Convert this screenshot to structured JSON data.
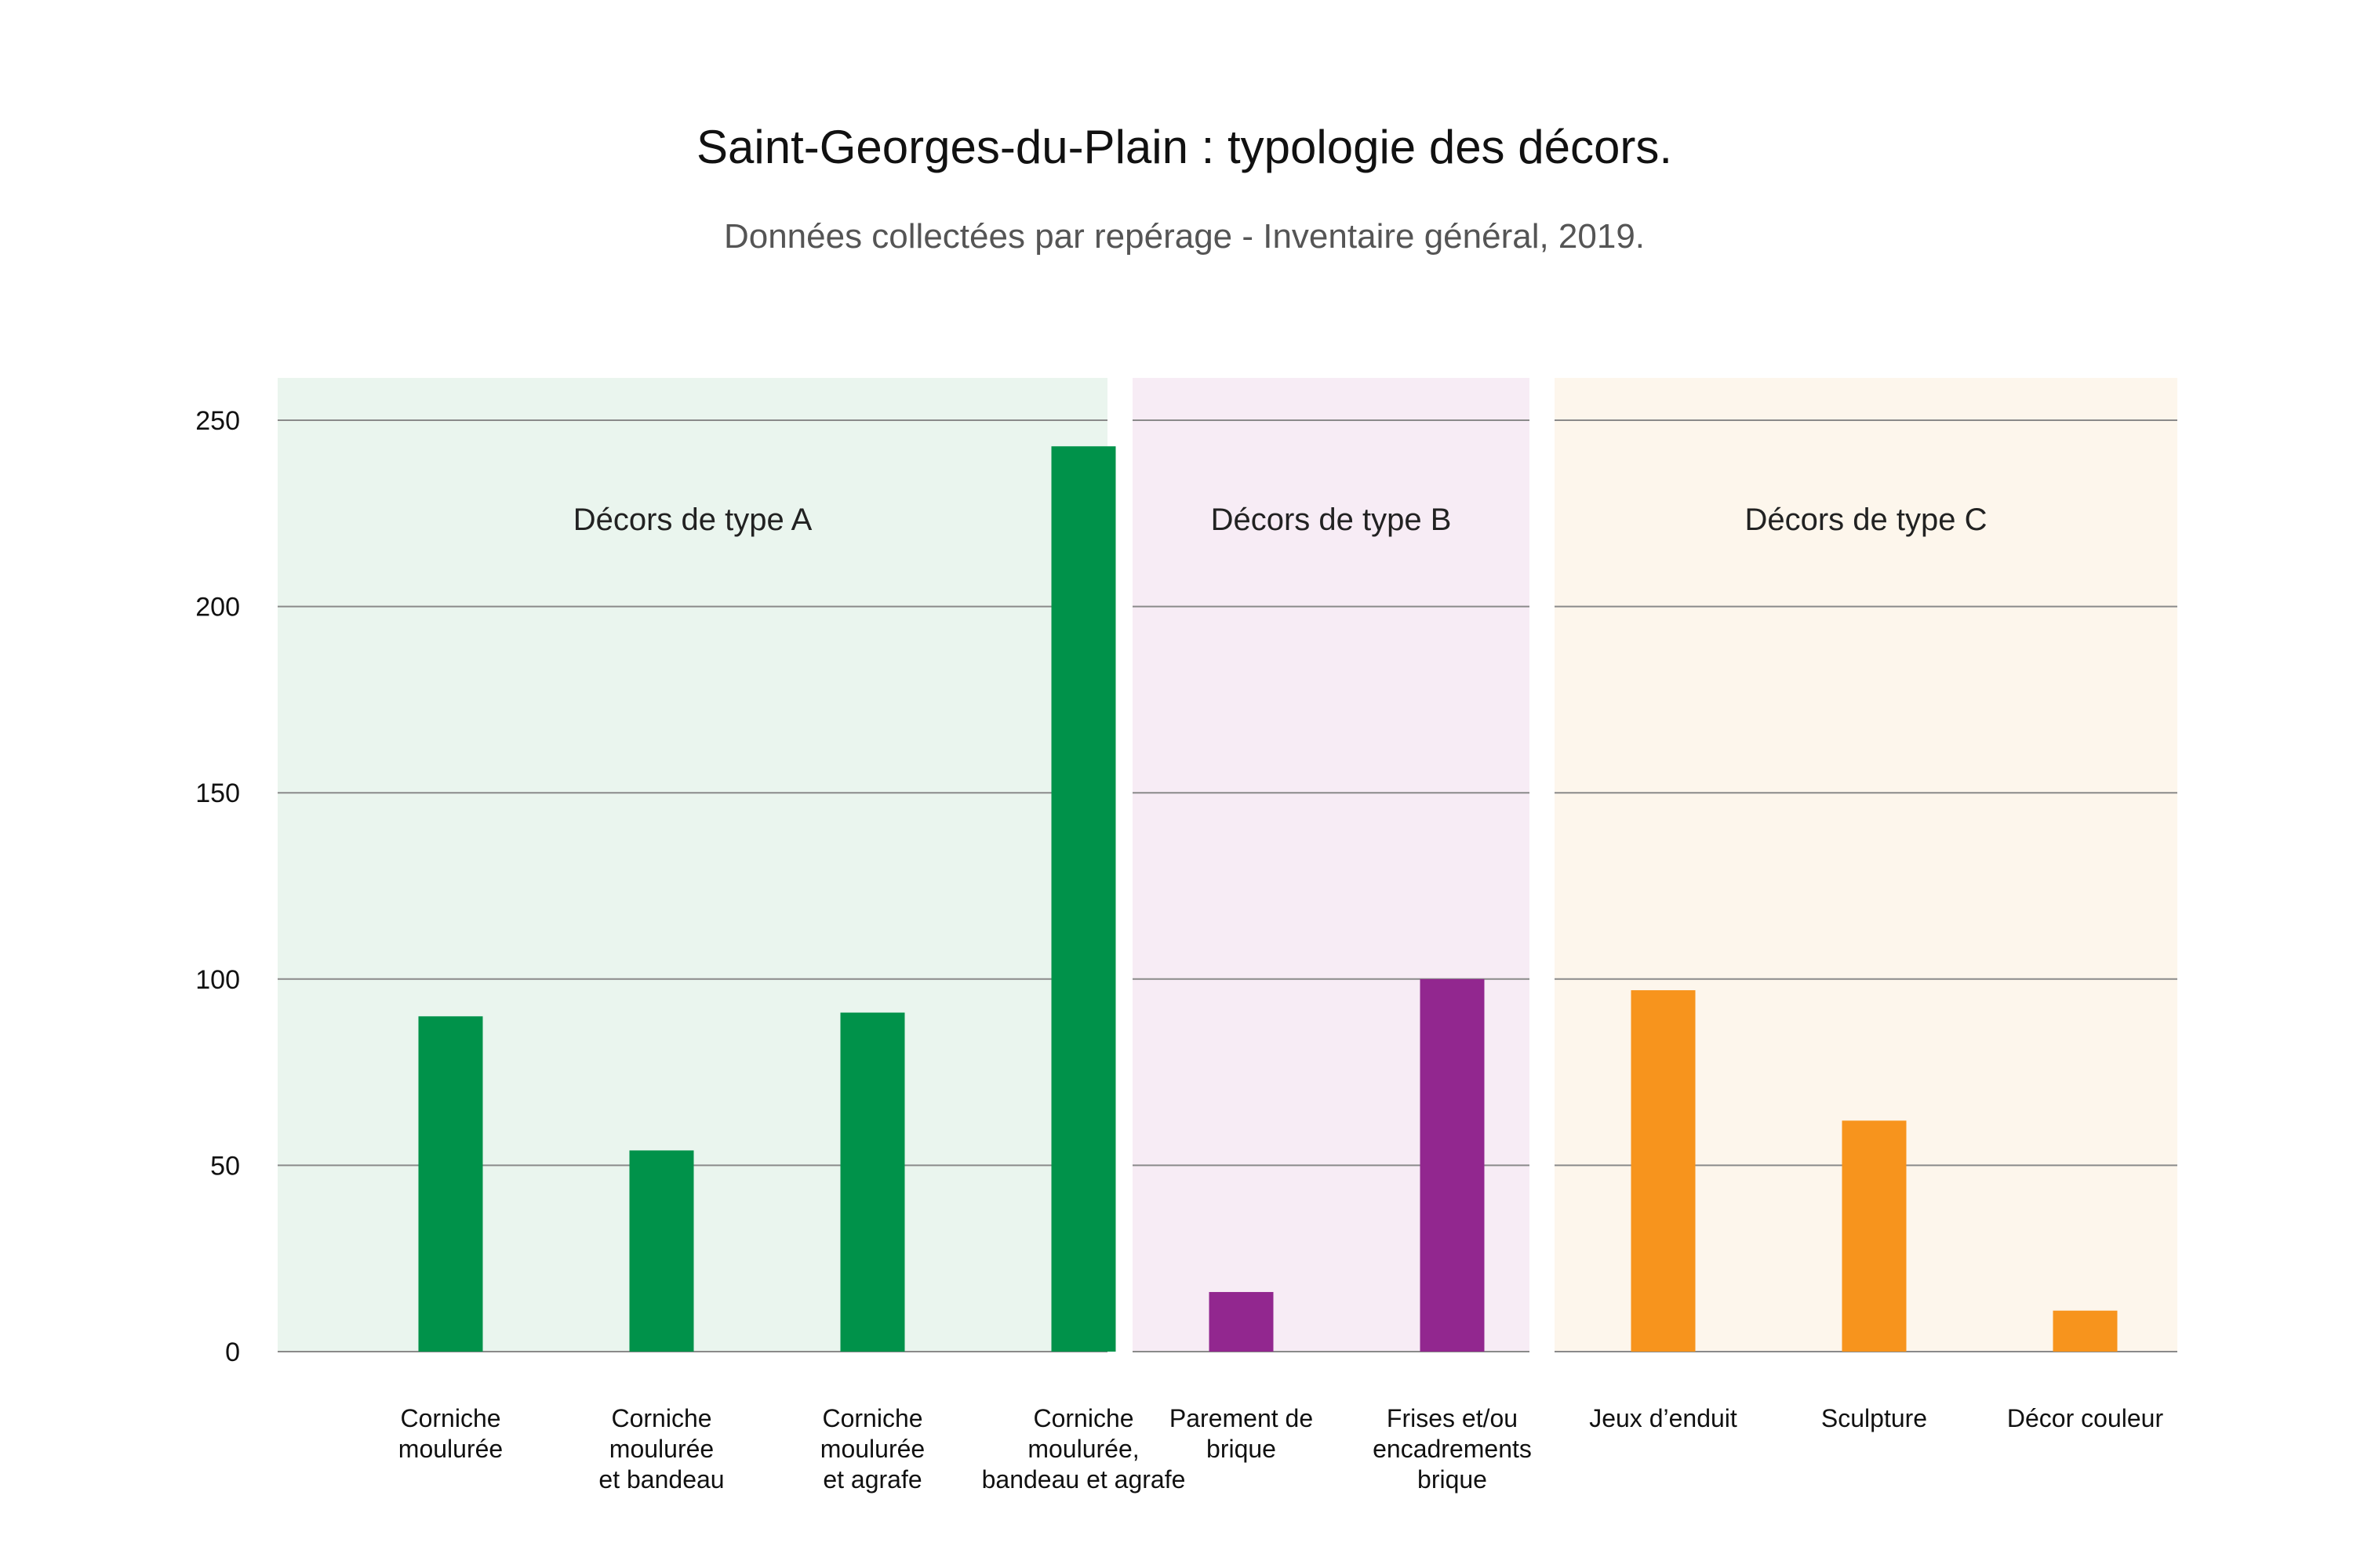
{
  "chart_data": {
    "type": "bar",
    "title": "Saint-Georges-du-Plain : typologie des décors.",
    "subtitle": "Données collectées par repérage - Inventaire général, 2019.",
    "xlabel": "",
    "ylabel": "",
    "ylim": [
      0,
      250
    ],
    "yticks": [
      "0",
      "50",
      "100",
      "150",
      "200",
      "250"
    ],
    "grid": true,
    "groups": [
      {
        "label": "Décors de type A",
        "background": "#eaf5ee",
        "bar_color": "#00924a",
        "categories": [
          [
            "Corniche",
            "moulurée"
          ],
          [
            "Corniche",
            "moulurée",
            "et bandeau"
          ],
          [
            "Corniche",
            "moulurée",
            "et agrafe"
          ],
          [
            "Corniche",
            "moulurée,",
            "bandeau et agrafe"
          ]
        ],
        "values": [
          90,
          54,
          91,
          243
        ]
      },
      {
        "label": "Décors de type B",
        "background": "#f7ecf5",
        "bar_color": "#92278f",
        "categories": [
          [
            "Parement de",
            "brique"
          ],
          [
            "Frises et/ou",
            "encadrements",
            "brique"
          ]
        ],
        "values": [
          16,
          100
        ]
      },
      {
        "label": "Décors de type C",
        "background": "#fdf6ec",
        "bar_color": "#f7941d",
        "categories": [
          [
            "Jeux d’enduit"
          ],
          [
            "Sculpture"
          ],
          [
            "Décor couleur"
          ]
        ],
        "values": [
          97,
          62,
          11
        ]
      }
    ]
  }
}
